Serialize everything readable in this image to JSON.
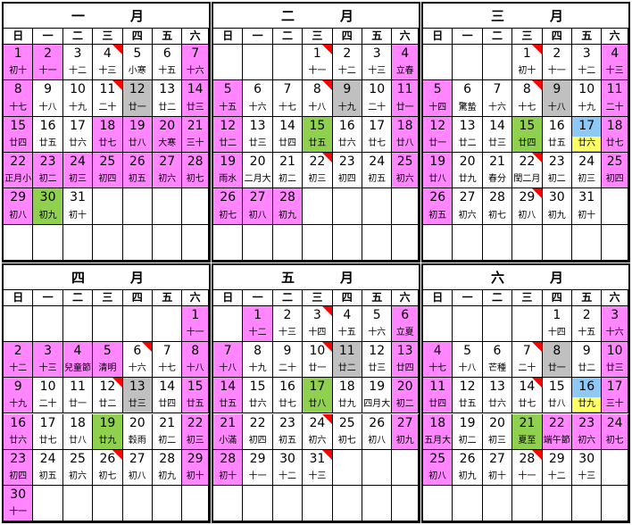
{
  "weekdays": [
    "日",
    "一",
    "二",
    "三",
    "四",
    "五",
    "六"
  ],
  "months": [
    {
      "name_left": "一",
      "name_right": "月",
      "weeks": [
        [
          null,
          null,
          null,
          null,
          null,
          null,
          null
        ],
        [
          null,
          null,
          null,
          null,
          null,
          null,
          null
        ]
      ],
      "days": [
        {
          "d": "1",
          "l": "初十",
          "c": "pink"
        },
        {
          "d": "2",
          "l": "十一",
          "c": "pink"
        },
        {
          "d": "3",
          "l": "十二"
        },
        {
          "d": "4",
          "l": "十三",
          "flag": true
        },
        {
          "d": "5",
          "l": "小寒"
        },
        {
          "d": "6",
          "l": "十五"
        },
        {
          "d": "7",
          "l": "十六",
          "c": "pink"
        },
        {
          "d": "8",
          "l": "十七",
          "c": "pink"
        },
        {
          "d": "9",
          "l": "十八"
        },
        {
          "d": "10",
          "l": "十九"
        },
        {
          "d": "11",
          "l": "二十",
          "flag": true
        },
        {
          "d": "12",
          "l": "廿一",
          "c": "gray"
        },
        {
          "d": "13",
          "l": "廿二"
        },
        {
          "d": "14",
          "l": "廿三",
          "c": "pink"
        },
        {
          "d": "15",
          "l": "廿四",
          "c": "pink"
        },
        {
          "d": "16",
          "l": "廿五"
        },
        {
          "d": "17",
          "l": "廿六"
        },
        {
          "d": "18",
          "l": "廿七",
          "c": "pink"
        },
        {
          "d": "19",
          "l": "廿八",
          "c": "pink"
        },
        {
          "d": "20",
          "l": "大寒",
          "c": "pink"
        },
        {
          "d": "21",
          "l": "三十",
          "c": "pink"
        },
        {
          "d": "22",
          "l": "正月小",
          "c": "pink"
        },
        {
          "d": "23",
          "l": "初二",
          "c": "pink"
        },
        {
          "d": "24",
          "l": "初三",
          "c": "pink"
        },
        {
          "d": "25",
          "l": "初四",
          "c": "pink"
        },
        {
          "d": "26",
          "l": "初五",
          "c": "pink"
        },
        {
          "d": "27",
          "l": "初六",
          "c": "pink"
        },
        {
          "d": "28",
          "l": "初七",
          "c": "pink"
        },
        {
          "d": "29",
          "l": "初八",
          "c": "pink"
        },
        {
          "d": "30",
          "l": "初九",
          "c": "green"
        },
        {
          "d": "31",
          "l": "初十"
        },
        null,
        null,
        null,
        null,
        null,
        null,
        null,
        null,
        null,
        null,
        null
      ]
    },
    {
      "name_left": "二",
      "name_right": "月",
      "days": [
        null,
        null,
        null,
        {
          "d": "1",
          "l": "十一",
          "flag": true
        },
        {
          "d": "2",
          "l": "十二"
        },
        {
          "d": "3",
          "l": "十三"
        },
        {
          "d": "4",
          "l": "立春",
          "c": "pink"
        },
        {
          "d": "5",
          "l": "十五",
          "c": "pink"
        },
        {
          "d": "6",
          "l": "十六"
        },
        {
          "d": "7",
          "l": "十七"
        },
        {
          "d": "8",
          "l": "十八",
          "flag": true
        },
        {
          "d": "9",
          "l": "十九",
          "c": "gray"
        },
        {
          "d": "10",
          "l": "二十"
        },
        {
          "d": "11",
          "l": "廿一",
          "c": "pink"
        },
        {
          "d": "12",
          "l": "廿二",
          "c": "pink"
        },
        {
          "d": "13",
          "l": "廿三"
        },
        {
          "d": "14",
          "l": "廿四"
        },
        {
          "d": "15",
          "l": "廿五",
          "c": "green"
        },
        {
          "d": "16",
          "l": "廿六"
        },
        {
          "d": "17",
          "l": "廿七"
        },
        {
          "d": "18",
          "l": "廿八",
          "c": "pink"
        },
        {
          "d": "19",
          "l": "雨水",
          "c": "pink"
        },
        {
          "d": "20",
          "l": "二月大"
        },
        {
          "d": "21",
          "l": "初二"
        },
        {
          "d": "22",
          "l": "初三",
          "flag": true
        },
        {
          "d": "23",
          "l": "初四"
        },
        {
          "d": "24",
          "l": "初五"
        },
        {
          "d": "25",
          "l": "初六",
          "c": "pink"
        },
        {
          "d": "26",
          "l": "初七",
          "c": "pink"
        },
        {
          "d": "27",
          "l": "初八",
          "c": "pink"
        },
        {
          "d": "28",
          "l": "初九",
          "c": "pink"
        },
        null,
        null,
        null,
        null,
        null,
        null,
        null,
        null,
        null,
        null,
        null
      ]
    },
    {
      "name_left": "三",
      "name_right": "月",
      "days": [
        null,
        null,
        null,
        {
          "d": "1",
          "l": "初十",
          "flag": true
        },
        {
          "d": "2",
          "l": "十一"
        },
        {
          "d": "3",
          "l": "十二"
        },
        {
          "d": "4",
          "l": "十三",
          "c": "pink"
        },
        {
          "d": "5",
          "l": "十四",
          "c": "pink"
        },
        {
          "d": "6",
          "l": "驚蟄"
        },
        {
          "d": "7",
          "l": "十六"
        },
        {
          "d": "8",
          "l": "十七",
          "flag": true
        },
        {
          "d": "9",
          "l": "十八",
          "c": "gray"
        },
        {
          "d": "10",
          "l": "十九"
        },
        {
          "d": "11",
          "l": "二十",
          "c": "pink"
        },
        {
          "d": "12",
          "l": "廿一",
          "c": "pink"
        },
        {
          "d": "13",
          "l": "廿二"
        },
        {
          "d": "14",
          "l": "廿三"
        },
        {
          "d": "15",
          "l": "廿四",
          "c": "green"
        },
        {
          "d": "16",
          "l": "廿五"
        },
        {
          "d": "17",
          "l": "廿六",
          "c": "blue",
          "yl": true
        },
        {
          "d": "18",
          "l": "廿七",
          "c": "pink"
        },
        {
          "d": "19",
          "l": "廿八",
          "c": "pink"
        },
        {
          "d": "20",
          "l": "廿九"
        },
        {
          "d": "21",
          "l": "春分"
        },
        {
          "d": "22",
          "l": "閏二月",
          "flag": true
        },
        {
          "d": "23",
          "l": "初二"
        },
        {
          "d": "24",
          "l": "初三"
        },
        {
          "d": "25",
          "l": "初四",
          "c": "pink"
        },
        {
          "d": "26",
          "l": "初五",
          "c": "pink"
        },
        {
          "d": "27",
          "l": "初六"
        },
        {
          "d": "28",
          "l": "初七"
        },
        {
          "d": "29",
          "l": "初八",
          "flag": true
        },
        {
          "d": "30",
          "l": "初九"
        },
        {
          "d": "31",
          "l": "初十"
        },
        null,
        null,
        null,
        null,
        null,
        null,
        null,
        null
      ]
    },
    {
      "name_left": "四",
      "name_right": "月",
      "days": [
        null,
        null,
        null,
        null,
        null,
        null,
        {
          "d": "1",
          "l": "十一",
          "c": "pink"
        },
        {
          "d": "2",
          "l": "十二",
          "c": "pink"
        },
        {
          "d": "3",
          "l": "十三",
          "c": "pink"
        },
        {
          "d": "4",
          "l": "兒童節",
          "c": "pink"
        },
        {
          "d": "5",
          "l": "清明",
          "c": "pink"
        },
        {
          "d": "6",
          "l": "十六",
          "flag": true
        },
        {
          "d": "7",
          "l": "十七"
        },
        {
          "d": "8",
          "l": "十八",
          "c": "pink"
        },
        {
          "d": "9",
          "l": "十九",
          "c": "pink"
        },
        {
          "d": "10",
          "l": "二十"
        },
        {
          "d": "11",
          "l": "廿一"
        },
        {
          "d": "12",
          "l": "廿二",
          "flag": true
        },
        {
          "d": "13",
          "l": "廿三",
          "c": "gray"
        },
        {
          "d": "14",
          "l": "廿四"
        },
        {
          "d": "15",
          "l": "廿五",
          "c": "pink"
        },
        {
          "d": "16",
          "l": "廿六",
          "c": "pink"
        },
        {
          "d": "17",
          "l": "廿七"
        },
        {
          "d": "18",
          "l": "廿八"
        },
        {
          "d": "19",
          "l": "廿九",
          "c": "green"
        },
        {
          "d": "20",
          "l": "穀雨"
        },
        {
          "d": "21",
          "l": "初二"
        },
        {
          "d": "22",
          "l": "初三",
          "c": "pink"
        },
        {
          "d": "23",
          "l": "初四",
          "c": "pink"
        },
        {
          "d": "24",
          "l": "初五"
        },
        {
          "d": "25",
          "l": "初六"
        },
        {
          "d": "26",
          "l": "初七",
          "flag": true
        },
        {
          "d": "27",
          "l": "初八"
        },
        {
          "d": "28",
          "l": "初九"
        },
        {
          "d": "29",
          "l": "初十",
          "c": "pink"
        },
        {
          "d": "30",
          "l": "十一",
          "c": "pink"
        },
        null,
        null,
        null,
        null,
        null,
        null
      ]
    },
    {
      "name_left": "五",
      "name_right": "月",
      "days": [
        null,
        {
          "d": "1",
          "l": "十二",
          "c": "pink"
        },
        {
          "d": "2",
          "l": "十三"
        },
        {
          "d": "3",
          "l": "十四",
          "flag": true
        },
        {
          "d": "4",
          "l": "十五"
        },
        {
          "d": "5",
          "l": "十六"
        },
        {
          "d": "6",
          "l": "立夏",
          "c": "pink"
        },
        {
          "d": "7",
          "l": "十八",
          "c": "pink"
        },
        {
          "d": "8",
          "l": "十九"
        },
        {
          "d": "9",
          "l": "二十"
        },
        {
          "d": "10",
          "l": "廿一",
          "flag": true
        },
        {
          "d": "11",
          "l": "廿二",
          "c": "gray"
        },
        {
          "d": "12",
          "l": "廿三"
        },
        {
          "d": "13",
          "l": "廿四",
          "c": "pink"
        },
        {
          "d": "14",
          "l": "廿五",
          "c": "pink"
        },
        {
          "d": "15",
          "l": "廿六"
        },
        {
          "d": "16",
          "l": "廿七"
        },
        {
          "d": "17",
          "l": "廿八",
          "c": "green"
        },
        {
          "d": "18",
          "l": "廿九"
        },
        {
          "d": "19",
          "l": "四月大"
        },
        {
          "d": "20",
          "l": "初二",
          "c": "pink"
        },
        {
          "d": "21",
          "l": "小滿",
          "c": "pink"
        },
        {
          "d": "22",
          "l": "初四"
        },
        {
          "d": "23",
          "l": "初五"
        },
        {
          "d": "24",
          "l": "初六",
          "flag": true
        },
        {
          "d": "25",
          "l": "初七"
        },
        {
          "d": "26",
          "l": "初八"
        },
        {
          "d": "27",
          "l": "初九",
          "c": "pink"
        },
        {
          "d": "28",
          "l": "初十",
          "c": "pink"
        },
        {
          "d": "29",
          "l": "十一"
        },
        {
          "d": "30",
          "l": "十二"
        },
        {
          "d": "31",
          "l": "十三",
          "flag": true
        },
        null,
        null,
        null,
        null,
        null,
        null,
        null,
        null,
        null,
        null
      ]
    },
    {
      "name_left": "六",
      "name_right": "月",
      "days": [
        null,
        null,
        null,
        null,
        {
          "d": "1",
          "l": "十四"
        },
        {
          "d": "2",
          "l": "十五"
        },
        {
          "d": "3",
          "l": "十六",
          "c": "pink"
        },
        {
          "d": "4",
          "l": "十七",
          "c": "pink"
        },
        {
          "d": "5",
          "l": "十八"
        },
        {
          "d": "6",
          "l": "芒種"
        },
        {
          "d": "7",
          "l": "二十",
          "flag": true
        },
        {
          "d": "8",
          "l": "廿一",
          "c": "gray"
        },
        {
          "d": "9",
          "l": "廿二"
        },
        {
          "d": "10",
          "l": "廿三",
          "c": "pink"
        },
        {
          "d": "11",
          "l": "廿四",
          "c": "pink"
        },
        {
          "d": "12",
          "l": "廿五"
        },
        {
          "d": "13",
          "l": "廿六"
        },
        {
          "d": "14",
          "l": "廿七",
          "flag": true
        },
        {
          "d": "15",
          "l": "廿八"
        },
        {
          "d": "16",
          "l": "廿九",
          "c": "blue",
          "yl": true
        },
        {
          "d": "17",
          "l": "三十",
          "c": "pink"
        },
        {
          "d": "18",
          "l": "五月大",
          "c": "pink"
        },
        {
          "d": "19",
          "l": "初二"
        },
        {
          "d": "20",
          "l": "初三"
        },
        {
          "d": "21",
          "l": "夏至",
          "c": "green"
        },
        {
          "d": "22",
          "l": "端午節",
          "c": "pink"
        },
        {
          "d": "23",
          "l": "初六",
          "c": "pink"
        },
        {
          "d": "24",
          "l": "初七",
          "c": "pink"
        },
        {
          "d": "25",
          "l": "初八",
          "c": "pink"
        },
        {
          "d": "26",
          "l": "初九"
        },
        {
          "d": "27",
          "l": "初十"
        },
        {
          "d": "28",
          "l": "十一",
          "flag": true
        },
        {
          "d": "29",
          "l": "十二"
        },
        {
          "d": "30",
          "l": "十三"
        },
        null,
        null,
        null,
        null,
        null,
        null,
        null,
        null
      ]
    }
  ]
}
